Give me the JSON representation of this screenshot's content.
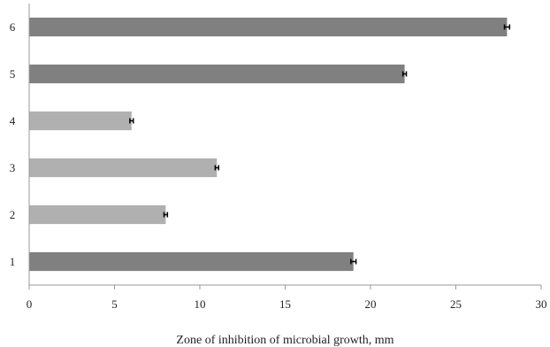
{
  "chart_data": {
    "type": "bar",
    "orientation": "horizontal",
    "title": "",
    "xlabel": "Zone of inhibition of microbial growth, mm",
    "ylabel": "",
    "categories": [
      "1",
      "2",
      "3",
      "4",
      "5",
      "6"
    ],
    "values": [
      19,
      8,
      11,
      6,
      22,
      28
    ],
    "errors": [
      0.15,
      0.1,
      0.1,
      0.1,
      0.1,
      0.15
    ],
    "bar_colors": [
      "#808080",
      "#b0b0b0",
      "#b0b0b0",
      "#b0b0b0",
      "#808080",
      "#808080"
    ],
    "xlim": [
      0,
      30
    ],
    "xticks": [
      0,
      5,
      10,
      15,
      20,
      25,
      30
    ],
    "grid": false,
    "legend": "none"
  }
}
